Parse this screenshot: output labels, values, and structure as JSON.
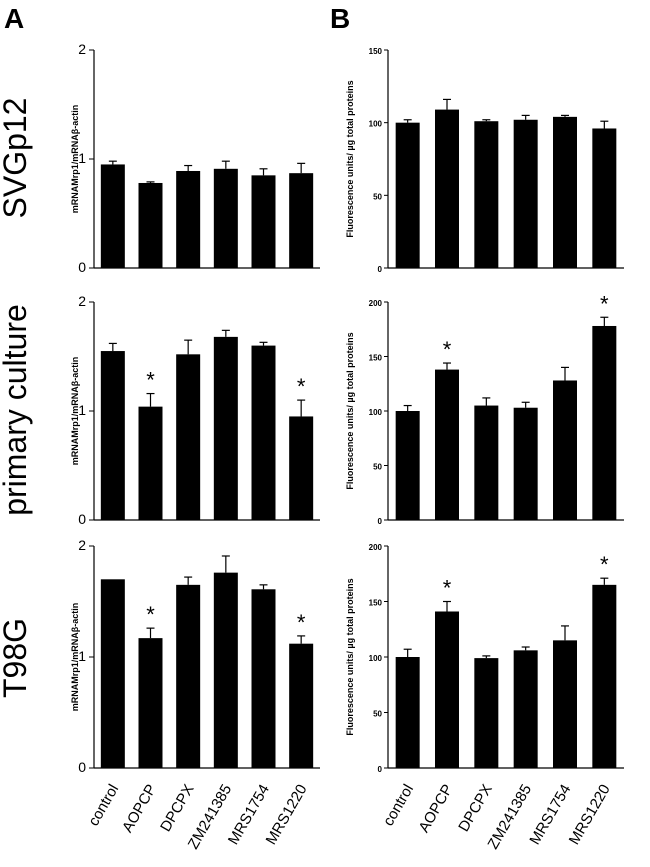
{
  "panel_labels": [
    "A",
    "B"
  ],
  "row_labels": [
    "SVGp12",
    "primary culture",
    "T98G"
  ],
  "categories": [
    "control",
    "AOPCP",
    "DPCPX",
    "ZM241385",
    "MRS1754",
    "MRS1220"
  ],
  "significance_marker": "*",
  "colors": {
    "bar": "#000000",
    "axis": "#000000",
    "background": "#ffffff"
  },
  "chart_data": [
    {
      "type": "bar",
      "panel": "A",
      "row": "SVGp12",
      "ylabel": "mRNAMrp1/mRNAβ-actin",
      "ylim": [
        0,
        2
      ],
      "yticks": [
        0,
        1,
        2
      ],
      "categories": [
        "control",
        "AOPCP",
        "DPCPX",
        "ZM241385",
        "MRS1754",
        "MRS1220"
      ],
      "values": [
        0.95,
        0.78,
        0.89,
        0.91,
        0.85,
        0.87
      ],
      "errors": [
        0.03,
        0.01,
        0.05,
        0.07,
        0.06,
        0.09
      ],
      "significant": [
        false,
        false,
        false,
        false,
        false,
        false
      ]
    },
    {
      "type": "bar",
      "panel": "B",
      "row": "SVGp12",
      "ylabel": "Fluorescence units/ µg total proteins",
      "ylim": [
        0,
        150
      ],
      "yticks": [
        0,
        50,
        100,
        150
      ],
      "categories": [
        "control",
        "AOPCP",
        "DPCPX",
        "ZM241385",
        "MRS1754",
        "MRS1220"
      ],
      "values": [
        100,
        109,
        101,
        102,
        104,
        96
      ],
      "errors": [
        2,
        7,
        1,
        3,
        1,
        5
      ],
      "significant": [
        false,
        false,
        false,
        false,
        false,
        false
      ]
    },
    {
      "type": "bar",
      "panel": "A",
      "row": "primary culture",
      "ylabel": "mRNAMrp1/mRNAβ-actin",
      "ylim": [
        0,
        2
      ],
      "yticks": [
        0,
        1,
        2
      ],
      "categories": [
        "control",
        "AOPCP",
        "DPCPX",
        "ZM241385",
        "MRS1754",
        "MRS1220"
      ],
      "values": [
        1.55,
        1.04,
        1.52,
        1.68,
        1.6,
        0.95
      ],
      "errors": [
        0.07,
        0.12,
        0.13,
        0.06,
        0.03,
        0.15
      ],
      "significant": [
        false,
        true,
        false,
        false,
        false,
        true
      ]
    },
    {
      "type": "bar",
      "panel": "B",
      "row": "primary culture",
      "ylabel": "Fluorescence units/ µg total proteins",
      "ylim": [
        0,
        200
      ],
      "yticks": [
        0,
        50,
        100,
        150,
        200
      ],
      "categories": [
        "control",
        "AOPCP",
        "DPCPX",
        "ZM241385",
        "MRS1754",
        "MRS1220"
      ],
      "values": [
        100,
        138,
        105,
        103,
        128,
        178
      ],
      "errors": [
        5,
        6,
        7,
        5,
        12,
        8
      ],
      "significant": [
        false,
        true,
        false,
        false,
        false,
        true
      ]
    },
    {
      "type": "bar",
      "panel": "A",
      "row": "T98G",
      "ylabel": "mRNAMrp1/mRNAβ-actin",
      "ylim": [
        0,
        2
      ],
      "yticks": [
        0,
        1,
        2
      ],
      "categories": [
        "control",
        "AOPCP",
        "DPCPX",
        "ZM241385",
        "MRS1754",
        "MRS1220"
      ],
      "values": [
        1.7,
        1.17,
        1.65,
        1.76,
        1.61,
        1.12
      ],
      "errors": [
        0.0,
        0.09,
        0.07,
        0.15,
        0.04,
        0.07
      ],
      "significant": [
        false,
        true,
        false,
        false,
        false,
        true
      ]
    },
    {
      "type": "bar",
      "panel": "B",
      "row": "T98G",
      "ylabel": "Fluorescence units/ µg total proteins",
      "ylim": [
        0,
        200
      ],
      "yticks": [
        0,
        50,
        100,
        150,
        200
      ],
      "categories": [
        "control",
        "AOPCP",
        "DPCPX",
        "ZM241385",
        "MRS1754",
        "MRS1220"
      ],
      "values": [
        100,
        141,
        99,
        106,
        115,
        165
      ],
      "errors": [
        7,
        9,
        2,
        3,
        13,
        6
      ],
      "significant": [
        false,
        true,
        false,
        false,
        false,
        true
      ]
    }
  ]
}
